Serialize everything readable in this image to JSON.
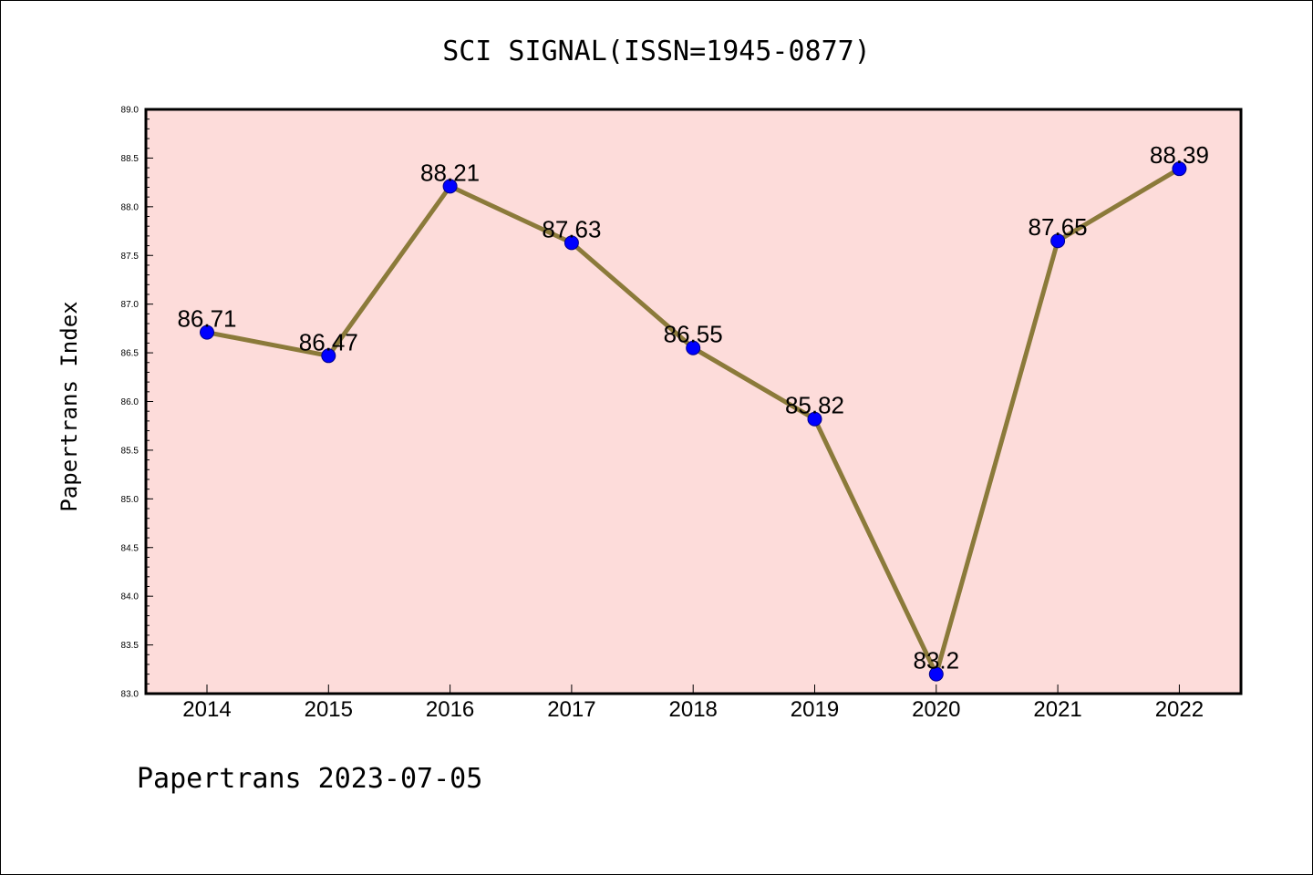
{
  "chart_data": {
    "type": "line",
    "title": "SCI SIGNAL(ISSN=1945-0877)",
    "xlabel": "",
    "ylabel": "Papertrans Index",
    "x": [
      "2014",
      "2015",
      "2016",
      "2017",
      "2018",
      "2019",
      "2020",
      "2021",
      "2022"
    ],
    "series": [
      {
        "values": [
          86.71,
          86.47,
          88.21,
          87.63,
          86.55,
          85.82,
          83.2,
          87.65,
          88.39
        ],
        "data_labels": [
          "86.71",
          "86.47",
          "88.21",
          "87.63",
          "86.55",
          "85.82",
          "83.2",
          "87.65",
          "88.39"
        ],
        "line_color": "#8B7A3A",
        "marker_color": "#0000FF"
      }
    ],
    "ylim": [
      83.0,
      89.0
    ],
    "yticks": [
      "83.0",
      "83.5",
      "84.0",
      "84.5",
      "85.0",
      "85.5",
      "86.0",
      "86.5",
      "87.0",
      "87.5",
      "88.0",
      "88.5",
      "89.0"
    ],
    "plot_background": "#FDDCDA",
    "grid": false,
    "legend": "none"
  },
  "footer": "Papertrans 2023-07-05"
}
